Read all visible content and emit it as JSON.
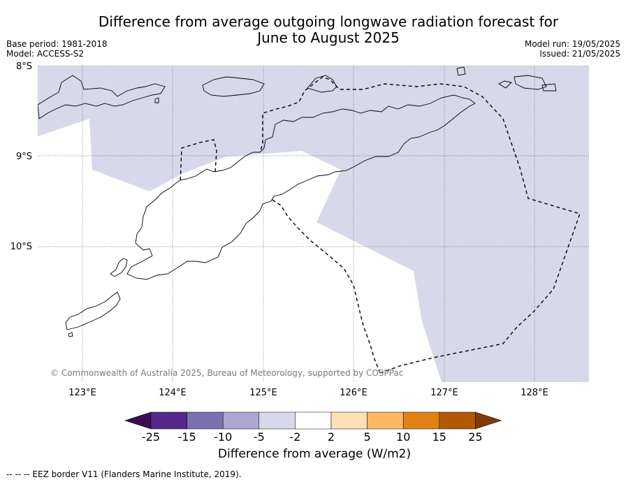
{
  "header": {
    "title_line1": "Difference from average outgoing longwave radiation forecast for",
    "title_line2": "June to August 2025",
    "base_period": "Base period: 1981-2018",
    "model": "Model: ACCESS-S2",
    "model_run": "Model run: 19/05/2025",
    "issued": "Issued: 21/05/2025"
  },
  "map": {
    "lat_labels": [
      "8°S",
      "9°S",
      "10°S"
    ],
    "lon_labels": [
      "123°E",
      "124°E",
      "125°E",
      "126°E",
      "127°E",
      "128°E"
    ],
    "copyright": "© Commonwealth of Australia 2025, Bureau of Meteorology, supported by COSPPac",
    "anomaly_fill_color": "#d7d8ea",
    "land_color": "#ffffff"
  },
  "colorbar": {
    "tick_labels": [
      "-25",
      "-15",
      "-10",
      "-5",
      "-2",
      "2",
      "5",
      "10",
      "15",
      "25"
    ],
    "colors": [
      "#3b0f4f",
      "#55288a",
      "#7b70b0",
      "#aca6d1",
      "#d7d8ea",
      "#ffffff",
      "#fee0b6",
      "#fdb863",
      "#e08214",
      "#b35806",
      "#7f3b08"
    ],
    "label": "Difference from average (W/m2)"
  },
  "footer": {
    "text": "--  --  -- EEZ border V11 (Flanders Marine Institute, 2019)."
  }
}
